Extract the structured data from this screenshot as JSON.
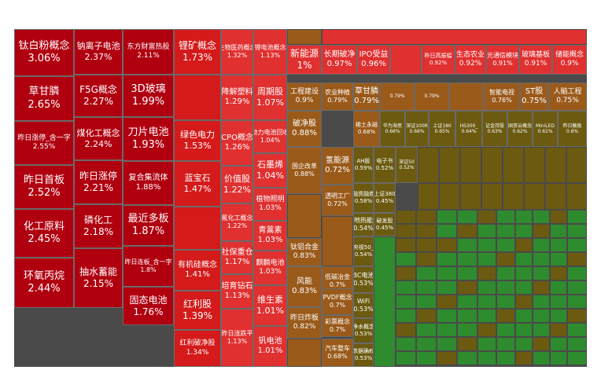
{
  "chart_data": {
    "type": "treemap",
    "colors": {
      "up_strong": "#b00010",
      "up_mid": "#d41a1a",
      "up_light": "#e03030",
      "small_up": "#9a5a1a",
      "flat": "#6b5a10",
      "down": "#2e8b2e",
      "background": "#4a4a4a"
    },
    "items": [
      {
        "name": "钛白粉概念",
        "change_pct": "3.06%"
      },
      {
        "name": "草甘膦",
        "change_pct": "2.65%"
      },
      {
        "name": "昨日涨停_含一字",
        "change_pct": "2.55%"
      },
      {
        "name": "昨日首板",
        "change_pct": "2.52%"
      },
      {
        "name": "化工原料",
        "change_pct": "2.45%"
      },
      {
        "name": "环氧丙烷",
        "change_pct": "2.44%"
      },
      {
        "name": "钠离子电池",
        "change_pct": "2.37%"
      },
      {
        "name": "F5G概念",
        "change_pct": "2.27%"
      },
      {
        "name": "煤化工概念",
        "change_pct": "2.24%"
      },
      {
        "name": "昨日涨停",
        "change_pct": "2.21%"
      },
      {
        "name": "磷化工",
        "change_pct": "2.18%"
      },
      {
        "name": "抽水蓄能",
        "change_pct": "2.15%"
      },
      {
        "name": "东方财富热股",
        "change_pct": "2.11%"
      },
      {
        "name": "3D玻璃",
        "change_pct": "1.99%"
      },
      {
        "name": "刀片电池",
        "change_pct": "1.93%"
      },
      {
        "name": "复合集流体",
        "change_pct": "1.88%"
      },
      {
        "name": "最近多板",
        "change_pct": "1.87%"
      },
      {
        "name": "昨日连板_含一字",
        "change_pct": "1.8%"
      },
      {
        "name": "固态电池",
        "change_pct": "1.76%"
      },
      {
        "name": "锂矿概念",
        "change_pct": "1.73%"
      },
      {
        "name": "",
        "change_pct": ""
      },
      {
        "name": "绿色电力",
        "change_pct": "1.53%"
      },
      {
        "name": "蓝宝石",
        "change_pct": "1.47%"
      },
      {
        "name": "",
        "change_pct": ""
      },
      {
        "name": "有机硅概念",
        "change_pct": "1.41%"
      },
      {
        "name": "红利股",
        "change_pct": "1.39%"
      },
      {
        "name": "红利破净股",
        "change_pct": "1.34%"
      },
      {
        "name": "生物医药概念",
        "change_pct": "1.32%"
      },
      {
        "name": "降解塑料",
        "change_pct": "1.29%"
      },
      {
        "name": "CPO概念",
        "change_pct": "1.26%"
      },
      {
        "name": "价值股",
        "change_pct": "1.22%"
      },
      {
        "name": "氟化工概念",
        "change_pct": "1.22%"
      },
      {
        "name": "社保重仓",
        "change_pct": "1.17%"
      },
      {
        "name": "培育钻石",
        "change_pct": "1.13%"
      },
      {
        "name": "昨日涨跌平",
        "change_pct": "1.13%"
      },
      {
        "name": "锂电池概念",
        "change_pct": "1.13%"
      },
      {
        "name": "周期股",
        "change_pct": "1.07%"
      },
      {
        "name": "动力电池回收",
        "change_pct": "1.04%"
      },
      {
        "name": "石墨烯",
        "change_pct": "1.04%"
      },
      {
        "name": "植物照明",
        "change_pct": "1.03%"
      },
      {
        "name": "青蒿素",
        "change_pct": "1.03%"
      },
      {
        "name": "麒麟电池",
        "change_pct": "1.03%"
      },
      {
        "name": "维生素",
        "change_pct": "1.01%"
      },
      {
        "name": "钒电池",
        "change_pct": "1.01%"
      },
      {
        "name": "新能源",
        "change_pct": "1%"
      },
      {
        "name": "工程建设",
        "change_pct": "0.9%"
      },
      {
        "name": "破净股",
        "change_pct": "0.88%"
      },
      {
        "name": "国企改革",
        "change_pct": "0.88%"
      },
      {
        "name": "钛铝合金",
        "change_pct": "0.83%"
      },
      {
        "name": "风能",
        "change_pct": "0.83%"
      },
      {
        "name": "昨日炸板",
        "change_pct": "0.82%"
      },
      {
        "name": "长期破净",
        "change_pct": "0.97%"
      },
      {
        "name": "IPO受益",
        "change_pct": "0.96%"
      },
      {
        "name": "",
        "change_pct": ""
      },
      {
        "name": "昨日高振幅",
        "change_pct": "0.92%"
      },
      {
        "name": "生态农业",
        "change_pct": "0.92%"
      },
      {
        "name": "光通信模块",
        "change_pct": "0.91%"
      },
      {
        "name": "玻璃基板",
        "change_pct": "0.91%"
      },
      {
        "name": "储能概念",
        "change_pct": "0.9%"
      },
      {
        "name": "农业种植",
        "change_pct": "0.79%"
      },
      {
        "name": "草甘膦",
        "change_pct": "0.79%"
      },
      {
        "name": "",
        "change_pct": "0.79%"
      },
      {
        "name": "",
        "change_pct": "0.79%"
      },
      {
        "name": "",
        "change_pct": ""
      },
      {
        "name": "智能电视",
        "change_pct": "0.76%"
      },
      {
        "name": "ST股",
        "change_pct": "0.75%"
      },
      {
        "name": "人脑工程",
        "change_pct": "0.75%"
      },
      {
        "name": "氢能源",
        "change_pct": "0.72%"
      },
      {
        "name": "透明工厂",
        "change_pct": "0.72%"
      },
      {
        "name": "低碳冶金",
        "change_pct": "0.7%"
      },
      {
        "name": "PVDF概念",
        "change_pct": "0.7%"
      },
      {
        "name": "彩票概念",
        "change_pct": "0.7%"
      },
      {
        "name": "汽车整车",
        "change_pct": "0.68%"
      },
      {
        "name": "稀土永磁",
        "change_pct": "0.68%"
      },
      {
        "name": "华为海思",
        "change_pct": "0.66%"
      },
      {
        "name": "深证100R",
        "change_pct": "0.66%"
      },
      {
        "name": "上证180",
        "change_pct": "0.65%"
      },
      {
        "name": "HS300_",
        "change_pct": "0.64%"
      },
      {
        "name": "证金持股",
        "change_pct": "0.63%"
      },
      {
        "name": "国资云概念",
        "change_pct": "0.62%"
      },
      {
        "name": "MiniLED",
        "change_pct": "0.61%"
      },
      {
        "name": "昨日触板",
        "change_pct": "0.6%"
      },
      {
        "name": "AH股",
        "change_pct": "0.59%"
      },
      {
        "name": "电子书",
        "change_pct": "0.52%"
      },
      {
        "name": "深证50",
        "change_pct": "0.52%"
      },
      {
        "name": "融资融券",
        "change_pct": "0.58%"
      },
      {
        "name": "上证380",
        "change_pct": "0.45%"
      },
      {
        "name": "地热能",
        "change_pct": "0.54%"
      },
      {
        "name": "破发股",
        "change_pct": "0.45%"
      },
      {
        "name": "央视50_",
        "change_pct": "0.54%"
      },
      {
        "name": "BC电池",
        "change_pct": "0.53%"
      },
      {
        "name": "WiFi",
        "change_pct": "0.53%"
      },
      {
        "name": "净水概念",
        "change_pct": "0.53%"
      },
      {
        "name": "数据确权",
        "change_pct": "0.53%"
      },
      {
        "name": "超级电容",
        "change_pct": "0.53%"
      }
    ]
  }
}
